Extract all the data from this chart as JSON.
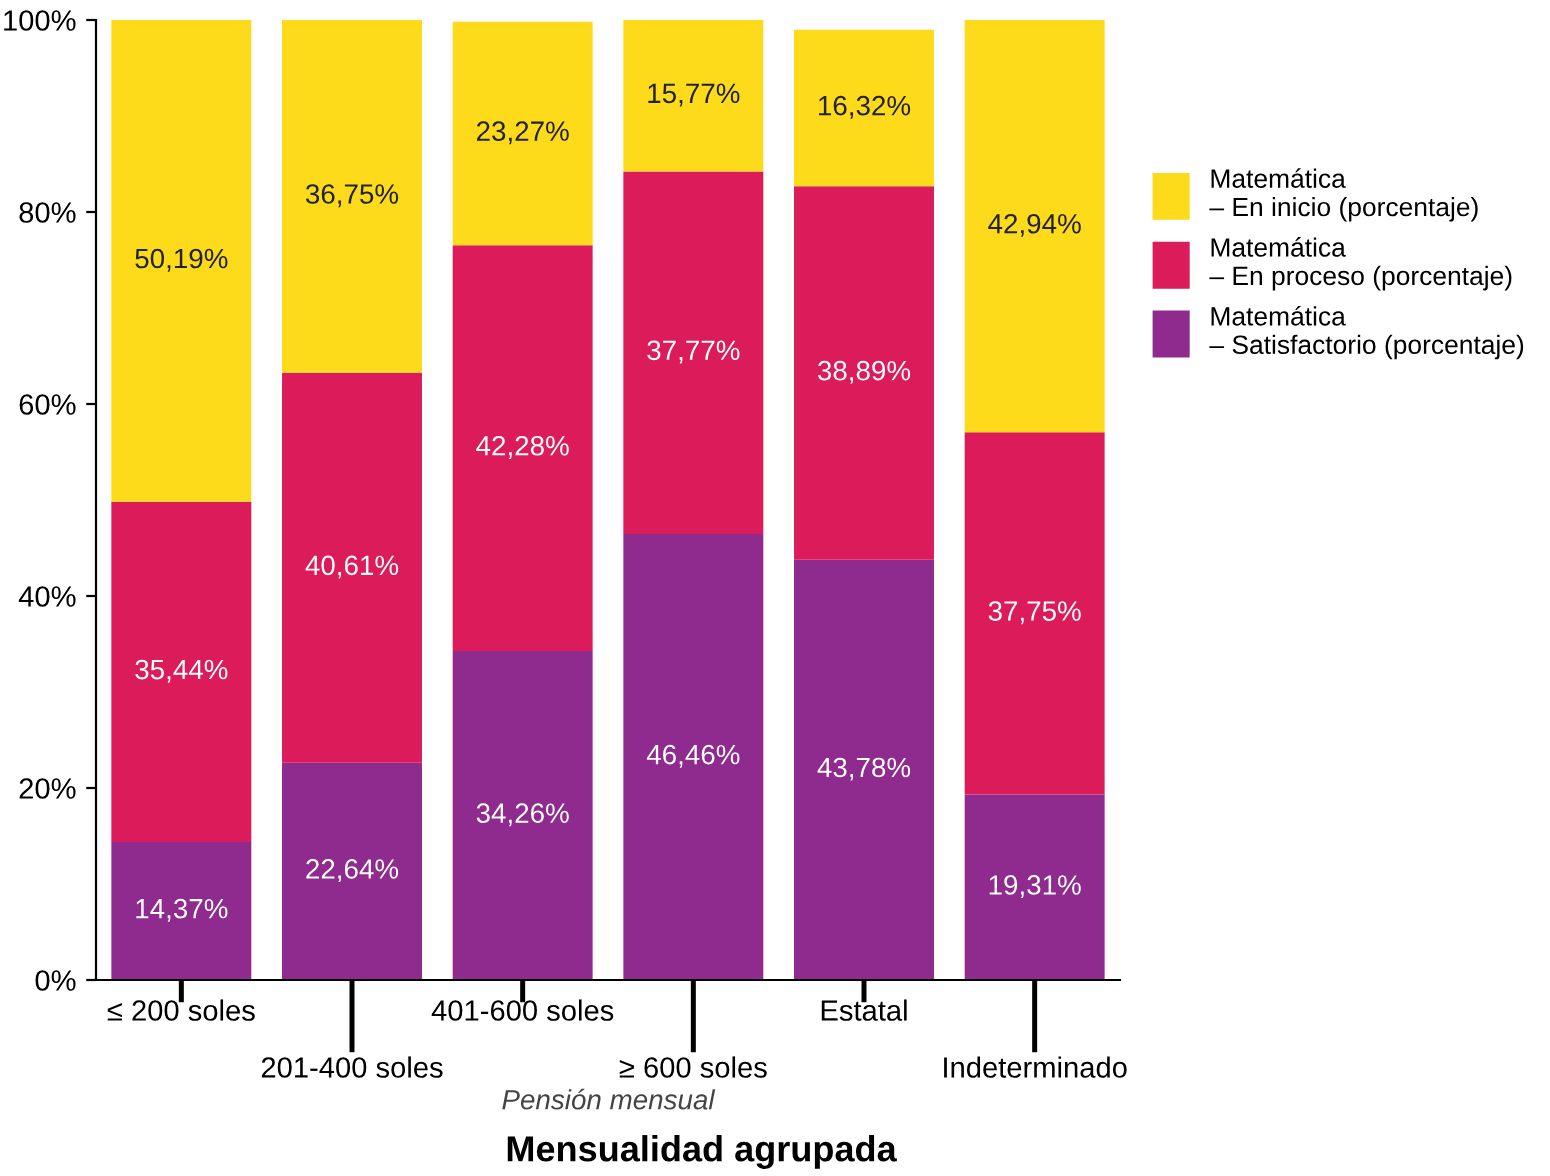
{
  "chart_data": {
    "type": "bar",
    "stacked": true,
    "title": "Mensualidad agrupada",
    "xlabel": "Pensión mensual",
    "categories": [
      "≤ 200 soles",
      "201-400 soles",
      "401-600 soles",
      "≥ 600 soles",
      "Estatal",
      "Indeterminado"
    ],
    "series": [
      {
        "name": "Matemática\n– Satisfactorio (porcentaje)",
        "color": "#8f2a8e",
        "values": [
          14.37,
          22.64,
          34.26,
          46.46,
          43.78,
          19.31
        ],
        "value_labels": [
          "14,37%",
          "22,64%",
          "34,26%",
          "46,46%",
          "43,78%",
          "19,31%"
        ]
      },
      {
        "name": "Matemática\n– En proceso (porcentaje)",
        "color": "#dc1c5a",
        "values": [
          35.44,
          40.61,
          42.28,
          37.77,
          38.89,
          37.75
        ],
        "value_labels": [
          "35,44%",
          "40,61%",
          "42,28%",
          "37,77%",
          "38,89%",
          "37,75%"
        ]
      },
      {
        "name": "Matemática\n– En inicio (porcentaje)",
        "color": "#fdda1a",
        "values": [
          50.19,
          36.75,
          23.27,
          15.77,
          16.32,
          42.94
        ],
        "value_labels": [
          "50,19%",
          "36,75%",
          "23,27%",
          "15,77%",
          "16,32%",
          "42,94%"
        ]
      }
    ],
    "ylim": [
      0,
      100
    ],
    "yticks": [
      {
        "value": 0,
        "label": "0%"
      },
      {
        "value": 20,
        "label": "20%"
      },
      {
        "value": 40,
        "label": "40%"
      },
      {
        "value": 60,
        "label": "60%"
      },
      {
        "value": 80,
        "label": "80%"
      },
      {
        "value": 100,
        "label": "100%"
      }
    ],
    "legend": "right",
    "grid": false
  }
}
